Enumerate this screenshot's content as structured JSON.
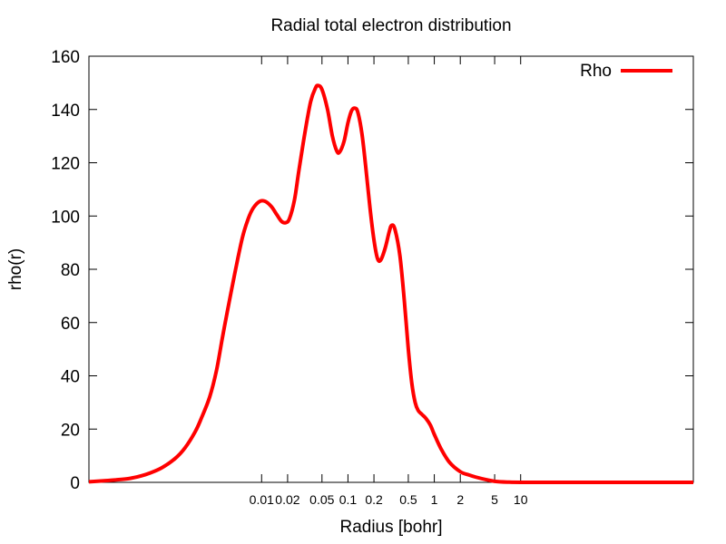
{
  "chart_data": {
    "type": "line",
    "title": "Radial total electron distribution",
    "xlabel": "Radius [bohr]",
    "ylabel": "rho(r)",
    "x_scale": "log",
    "xlim": [
      0.0001,
      1000
    ],
    "ylim": [
      0,
      160
    ],
    "x_ticks": [
      {
        "value": 0.01,
        "label": "0.01"
      },
      {
        "value": 0.02,
        "label": "0.02"
      },
      {
        "value": 0.05,
        "label": "0.05"
      },
      {
        "value": 0.1,
        "label": "0.1"
      },
      {
        "value": 0.2,
        "label": "0.2"
      },
      {
        "value": 0.5,
        "label": "0.5"
      },
      {
        "value": 1,
        "label": "1"
      },
      {
        "value": 2,
        "label": "2"
      },
      {
        "value": 5,
        "label": "5"
      },
      {
        "value": 10,
        "label": "10"
      }
    ],
    "y_ticks": [
      0,
      20,
      40,
      60,
      80,
      100,
      120,
      140,
      160
    ],
    "grid": false,
    "legend_position": "top-right",
    "series": [
      {
        "name": "Rho",
        "color": "#ff0000",
        "points": [
          [
            0.0001,
            0.2
          ],
          [
            0.00015,
            0.6
          ],
          [
            0.0002,
            0.9
          ],
          [
            0.0003,
            1.5
          ],
          [
            0.0004,
            2.4
          ],
          [
            0.0005,
            3.4
          ],
          [
            0.0007,
            5.5
          ],
          [
            0.001,
            9
          ],
          [
            0.0013,
            13
          ],
          [
            0.0017,
            19
          ],
          [
            0.002,
            24
          ],
          [
            0.0025,
            32
          ],
          [
            0.003,
            42
          ],
          [
            0.0035,
            54
          ],
          [
            0.004,
            64
          ],
          [
            0.005,
            80
          ],
          [
            0.006,
            92
          ],
          [
            0.007,
            99
          ],
          [
            0.008,
            103
          ],
          [
            0.0095,
            105.5
          ],
          [
            0.011,
            105.5
          ],
          [
            0.013,
            103.5
          ],
          [
            0.015,
            100.5
          ],
          [
            0.017,
            98
          ],
          [
            0.019,
            97.5
          ],
          [
            0.021,
            99
          ],
          [
            0.024,
            106
          ],
          [
            0.027,
            117
          ],
          [
            0.032,
            132
          ],
          [
            0.037,
            143
          ],
          [
            0.042,
            148
          ],
          [
            0.045,
            149
          ],
          [
            0.05,
            147.5
          ],
          [
            0.058,
            140
          ],
          [
            0.066,
            130
          ],
          [
            0.074,
            124.5
          ],
          [
            0.08,
            124
          ],
          [
            0.09,
            128
          ],
          [
            0.1,
            135
          ],
          [
            0.11,
            139.5
          ],
          [
            0.12,
            140.5
          ],
          [
            0.13,
            139
          ],
          [
            0.145,
            131
          ],
          [
            0.16,
            119
          ],
          [
            0.18,
            103
          ],
          [
            0.2,
            91
          ],
          [
            0.22,
            84
          ],
          [
            0.24,
            83.5
          ],
          [
            0.27,
            88
          ],
          [
            0.3,
            94
          ],
          [
            0.32,
            96.5
          ],
          [
            0.35,
            95
          ],
          [
            0.4,
            85
          ],
          [
            0.45,
            68
          ],
          [
            0.5,
            50
          ],
          [
            0.55,
            37
          ],
          [
            0.6,
            30
          ],
          [
            0.65,
            27
          ],
          [
            0.72,
            25.5
          ],
          [
            0.8,
            24
          ],
          [
            0.9,
            21.5
          ],
          [
            1.0,
            18
          ],
          [
            1.2,
            12.5
          ],
          [
            1.5,
            7.5
          ],
          [
            2.0,
            4
          ],
          [
            2.5,
            2.8
          ],
          [
            3.0,
            2
          ],
          [
            4.0,
            1
          ],
          [
            5.0,
            0.4
          ],
          [
            7.0,
            0.1
          ],
          [
            10,
            0.02
          ],
          [
            50,
            0
          ],
          [
            200,
            0
          ],
          [
            1000,
            0
          ]
        ]
      }
    ]
  }
}
